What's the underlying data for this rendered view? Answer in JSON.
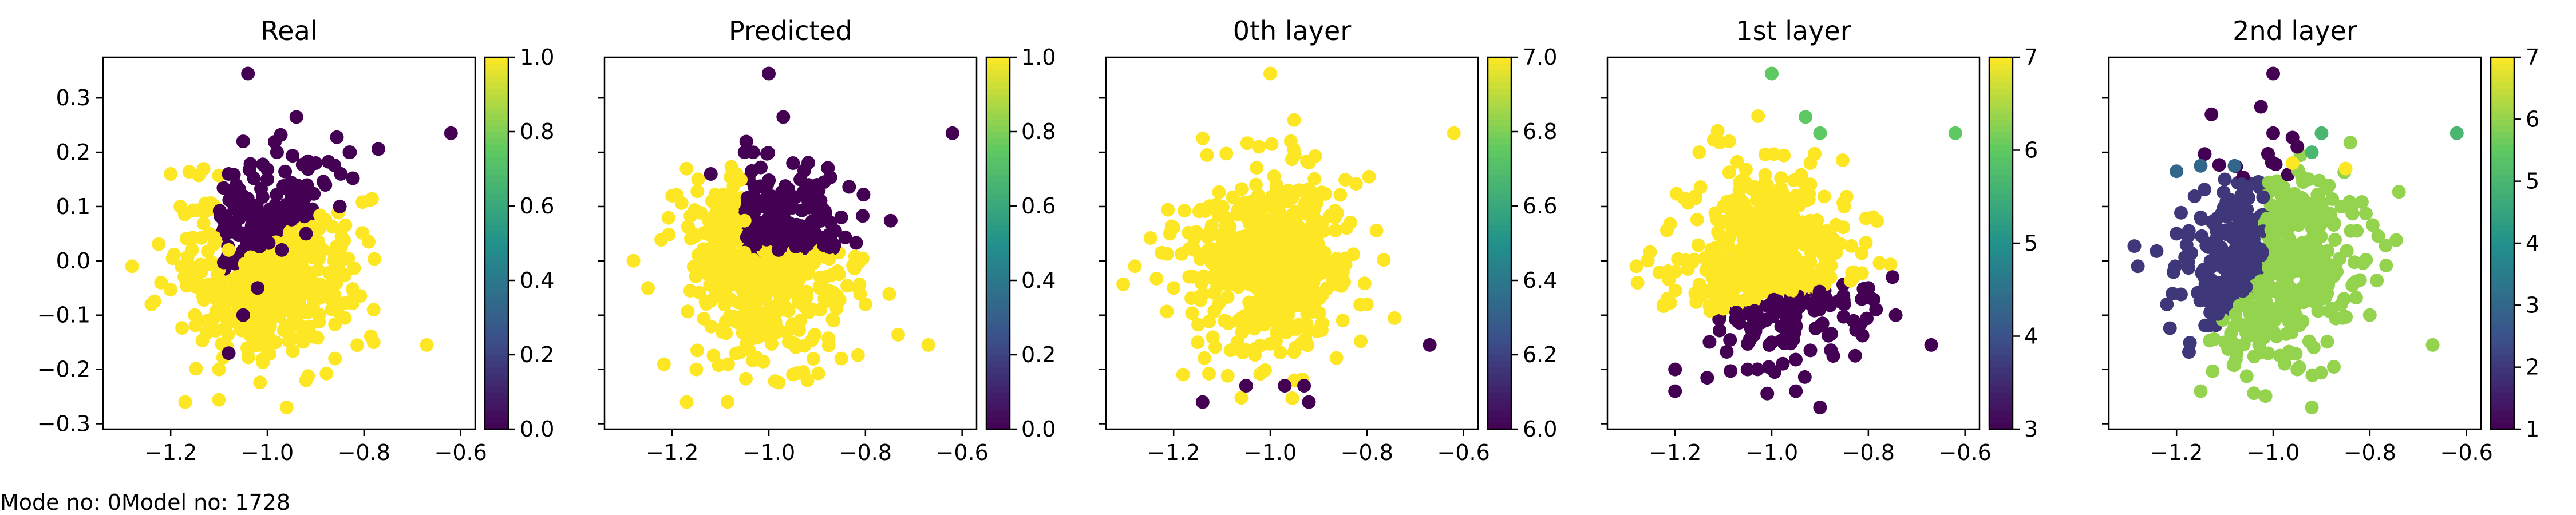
{
  "footer": {
    "mode_label": "Mode no: 0",
    "model_label": "Model no: 1728"
  },
  "colormap": "viridis",
  "colormap_stops": [
    "#440154",
    "#3b528b",
    "#21918c",
    "#5ec962",
    "#fde725"
  ],
  "chart_data": [
    {
      "type": "scatter",
      "title": "Real",
      "xlim": [
        -1.34,
        -0.57
      ],
      "ylim": [
        -0.31,
        0.375
      ],
      "xticks": [
        "-1.2",
        "-1.0",
        "-0.8",
        "-0.6"
      ],
      "yticks": [
        "-0.3",
        "-0.2",
        "-0.1",
        "0.0",
        "0.1",
        "0.2",
        "0.3"
      ],
      "show_ytick_labels": true,
      "colorbar": {
        "range": [
          0,
          1
        ],
        "ticks": [
          "0.0",
          "0.2",
          "0.4",
          "0.6",
          "0.8",
          "1.0"
        ]
      },
      "color_rule": "real",
      "series": [
        {
          "value": 1,
          "points": [
            [
              -1.08,
              0.02
            ],
            [
              -1.12,
              0.05
            ],
            [
              -1.18,
              0.1
            ],
            [
              -1.05,
              -0.05
            ],
            [
              -1.22,
              -0.04
            ],
            [
              -1.28,
              -0.01
            ],
            [
              -1.15,
              -0.1
            ],
            [
              -1.1,
              -0.2
            ],
            [
              -1.17,
              -0.26
            ],
            [
              -0.92,
              -0.22
            ],
            [
              -0.96,
              -0.27
            ],
            [
              -0.82,
              -0.06
            ],
            [
              -0.78,
              -0.09
            ],
            [
              -0.67,
              -0.155
            ],
            [
              -0.78,
              -0.15
            ],
            [
              -0.86,
              -0.18
            ],
            [
              -0.9,
              -0.05
            ],
            [
              -1.2,
              0.16
            ],
            [
              -1.0,
              -0.12
            ],
            [
              -1.24,
              -0.08
            ]
          ]
        },
        {
          "value": 0,
          "points": [
            [
              -1.04,
              0.345
            ],
            [
              -0.94,
              0.265
            ],
            [
              -0.62,
              0.235
            ],
            [
              -1.05,
              0.22
            ],
            [
              -0.98,
              0.2
            ],
            [
              -0.9,
              0.18
            ],
            [
              -0.88,
              0.14
            ],
            [
              -0.85,
              0.1
            ],
            [
              -0.95,
              0.12
            ],
            [
              -1.0,
              0.15
            ],
            [
              -1.08,
              0.16
            ],
            [
              -0.92,
              0.05
            ],
            [
              -0.97,
              0.02
            ],
            [
              -1.02,
              -0.05
            ],
            [
              -1.05,
              -0.1
            ],
            [
              -1.08,
              -0.17
            ],
            [
              -0.83,
              0.2
            ]
          ]
        }
      ]
    },
    {
      "type": "scatter",
      "title": "Predicted",
      "xlim": [
        -1.34,
        -0.57
      ],
      "ylim": [
        -0.31,
        0.375
      ],
      "xticks": [
        "-1.2",
        "-1.0",
        "-0.8",
        "-0.6"
      ],
      "yticks": [
        "-0.3",
        "-0.2",
        "-0.1",
        "0.0",
        "0.1",
        "0.2",
        "0.3"
      ],
      "show_ytick_labels": false,
      "colorbar": {
        "range": [
          0,
          1
        ],
        "ticks": [
          "0.0",
          "0.2",
          "0.4",
          "0.6",
          "0.8",
          "1.0"
        ]
      },
      "color_rule": "predicted",
      "series": [
        {
          "value": 1,
          "points": [
            [
              -1.12,
              0.05
            ],
            [
              -1.2,
              0.12
            ],
            [
              -1.05,
              -0.1
            ],
            [
              -1.25,
              -0.05
            ],
            [
              -1.15,
              -0.2
            ],
            [
              -1.17,
              -0.26
            ],
            [
              -0.92,
              -0.22
            ],
            [
              -0.67,
              -0.155
            ],
            [
              -0.8,
              -0.08
            ],
            [
              -0.85,
              -0.18
            ],
            [
              -0.95,
              -0.05
            ],
            [
              -1.28,
              0.0
            ]
          ]
        },
        {
          "value": 0,
          "points": [
            [
              -1.0,
              0.345
            ],
            [
              -0.62,
              0.235
            ],
            [
              -1.05,
              0.2
            ],
            [
              -0.95,
              0.18
            ],
            [
              -0.9,
              0.14
            ],
            [
              -0.85,
              0.08
            ],
            [
              -0.92,
              0.05
            ],
            [
              -0.98,
              0.02
            ],
            [
              -1.12,
              0.16
            ],
            [
              -0.97,
              0.265
            ]
          ]
        }
      ]
    },
    {
      "type": "scatter",
      "title": "0th layer",
      "xlim": [
        -1.34,
        -0.57
      ],
      "ylim": [
        -0.31,
        0.375
      ],
      "xticks": [
        "-1.2",
        "-1.0",
        "-0.8",
        "-0.6"
      ],
      "yticks": [
        "-0.3",
        "-0.2",
        "-0.1",
        "0.0",
        "0.1",
        "0.2",
        "0.3"
      ],
      "show_ytick_labels": false,
      "colorbar": {
        "range": [
          6,
          7
        ],
        "ticks": [
          "6.0",
          "6.2",
          "6.4",
          "6.6",
          "6.8",
          "7.0"
        ]
      },
      "color_rule": "layer0",
      "series": [
        {
          "value": 7,
          "points": [
            [
              -1.0,
              0.345
            ],
            [
              -0.62,
              0.235
            ],
            [
              -1.1,
              0.1
            ],
            [
              -1.0,
              0.0
            ],
            [
              -0.9,
              0.05
            ],
            [
              -1.2,
              -0.05
            ],
            [
              -1.15,
              -0.15
            ],
            [
              -0.8,
              -0.08
            ],
            [
              -0.95,
              -0.22
            ],
            [
              -1.28,
              -0.01
            ]
          ]
        },
        {
          "value": 6,
          "points": [
            [
              -1.14,
              -0.26
            ],
            [
              -1.05,
              -0.23
            ],
            [
              -0.97,
              -0.23
            ],
            [
              -0.93,
              -0.23
            ],
            [
              -0.92,
              -0.26
            ],
            [
              -0.67,
              -0.155
            ]
          ]
        }
      ]
    },
    {
      "type": "scatter",
      "title": "1st layer",
      "xlim": [
        -1.34,
        -0.57
      ],
      "ylim": [
        -0.31,
        0.375
      ],
      "xticks": [
        "-1.2",
        "-1.0",
        "-0.8",
        "-0.6"
      ],
      "yticks": [
        "-0.3",
        "-0.2",
        "-0.1",
        "0.0",
        "0.1",
        "0.2",
        "0.3"
      ],
      "show_ytick_labels": false,
      "colorbar": {
        "range": [
          3,
          7
        ],
        "ticks": [
          "3",
          "4",
          "5",
          "6",
          "7"
        ]
      },
      "color_rule": "layer1",
      "series": [
        {
          "value": 7,
          "points": [
            [
              -1.1,
              0.1
            ],
            [
              -1.0,
              0.05
            ],
            [
              -1.2,
              -0.02
            ],
            [
              -1.28,
              -0.01
            ],
            [
              -0.92,
              0.18
            ],
            [
              -0.85,
              0.1
            ],
            [
              -1.15,
              0.2
            ]
          ]
        },
        {
          "value": 6,
          "points": [
            [
              -1.0,
              0.345
            ],
            [
              -0.93,
              0.265
            ],
            [
              -0.62,
              0.235
            ],
            [
              -0.9,
              0.235
            ]
          ]
        },
        {
          "value": 3,
          "points": [
            [
              -1.0,
              -0.15
            ],
            [
              -0.9,
              -0.12
            ],
            [
              -0.85,
              -0.08
            ],
            [
              -0.8,
              -0.05
            ],
            [
              -0.75,
              -0.03
            ],
            [
              -1.05,
              -0.2
            ],
            [
              -1.2,
              -0.2
            ],
            [
              -1.2,
              -0.24
            ],
            [
              -0.95,
              -0.24
            ],
            [
              -0.9,
              -0.27
            ],
            [
              -0.67,
              -0.155
            ]
          ]
        }
      ]
    },
    {
      "type": "scatter",
      "title": "2nd layer",
      "xlim": [
        -1.34,
        -0.57
      ],
      "ylim": [
        -0.31,
        0.375
      ],
      "xticks": [
        "-1.2",
        "-1.0",
        "-0.8",
        "-0.6"
      ],
      "yticks": [
        "-0.3",
        "-0.2",
        "-0.1",
        "0.0",
        "0.1",
        "0.2",
        "0.3"
      ],
      "show_ytick_labels": false,
      "colorbar": {
        "range": [
          1,
          7
        ],
        "ticks": [
          "1",
          "2",
          "3",
          "4",
          "5",
          "6",
          "7"
        ]
      },
      "color_rule": "layer2",
      "series": [
        {
          "value": 6,
          "points": [
            [
              -1.0,
              -0.05
            ],
            [
              -0.9,
              0.0
            ],
            [
              -1.1,
              -0.15
            ],
            [
              -0.95,
              -0.2
            ],
            [
              -0.8,
              -0.1
            ],
            [
              -0.67,
              -0.155
            ],
            [
              -1.15,
              -0.24
            ],
            [
              -0.92,
              -0.27
            ]
          ]
        },
        {
          "value": 2,
          "points": [
            [
              -1.2,
              0.05
            ],
            [
              -1.28,
              -0.01
            ],
            [
              -1.22,
              -0.08
            ],
            [
              -1.15,
              0.08
            ],
            [
              -1.1,
              0.15
            ]
          ]
        },
        {
          "value": 3,
          "points": [
            [
              -1.2,
              0.165
            ],
            [
              -1.15,
              0.175
            ],
            [
              -1.08,
              0.175
            ]
          ]
        },
        {
          "value": 1,
          "points": [
            [
              -1.0,
              0.345
            ],
            [
              -1.0,
              0.235
            ],
            [
              -0.95,
              0.21
            ]
          ]
        },
        {
          "value": 5,
          "points": [
            [
              -0.92,
              0.2
            ],
            [
              -0.9,
              0.235
            ],
            [
              -0.62,
              0.235
            ]
          ]
        },
        {
          "value": 7,
          "points": [
            [
              -0.96,
              0.18
            ],
            [
              -0.85,
              0.17
            ]
          ]
        }
      ]
    }
  ]
}
